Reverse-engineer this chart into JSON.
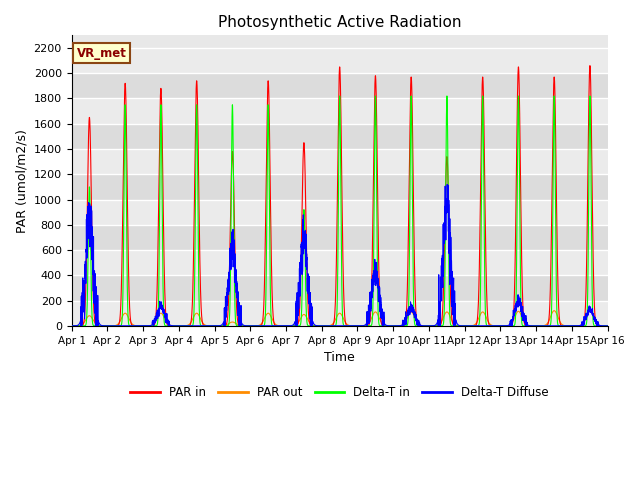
{
  "title": "Photosynthetic Active Radiation",
  "xlabel": "Time",
  "ylabel": "PAR (umol/m2/s)",
  "ylim": [
    0,
    2300
  ],
  "yticks": [
    0,
    200,
    400,
    600,
    800,
    1000,
    1200,
    1400,
    1600,
    1800,
    2000,
    2200
  ],
  "label_box": "VR_met",
  "legend": [
    "PAR in",
    "PAR out",
    "Delta-T in",
    "Delta-T Diffuse"
  ],
  "colors": [
    "red",
    "orange",
    "lime",
    "blue"
  ],
  "n_days": 15,
  "peaks_par_in": [
    1650,
    1920,
    1880,
    1940,
    1380,
    1940,
    1450,
    2050,
    1980,
    1970,
    1340,
    1970,
    2050,
    1970,
    2060
  ],
  "peaks_par_out": [
    80,
    100,
    100,
    100,
    30,
    100,
    90,
    100,
    110,
    110,
    110,
    110,
    115,
    120,
    120
  ],
  "peaks_delta_in": [
    1100,
    1750,
    1750,
    1750,
    1750,
    1750,
    920,
    1820,
    1820,
    1820,
    1820,
    1820,
    1820,
    1820,
    1820
  ],
  "peaks_delta_dif": [
    850,
    0,
    160,
    0,
    620,
    0,
    700,
    0,
    430,
    150,
    1000,
    0,
    200,
    0,
    130
  ],
  "par_in_color": "#ff0000",
  "par_out_color": "#ff8c00",
  "delta_in_color": "#00ff00",
  "delta_dif_color": "#0000ff",
  "plot_bg": "#e8e8e8",
  "band_light": "#ebebeb",
  "band_dark": "#dcdcdc"
}
